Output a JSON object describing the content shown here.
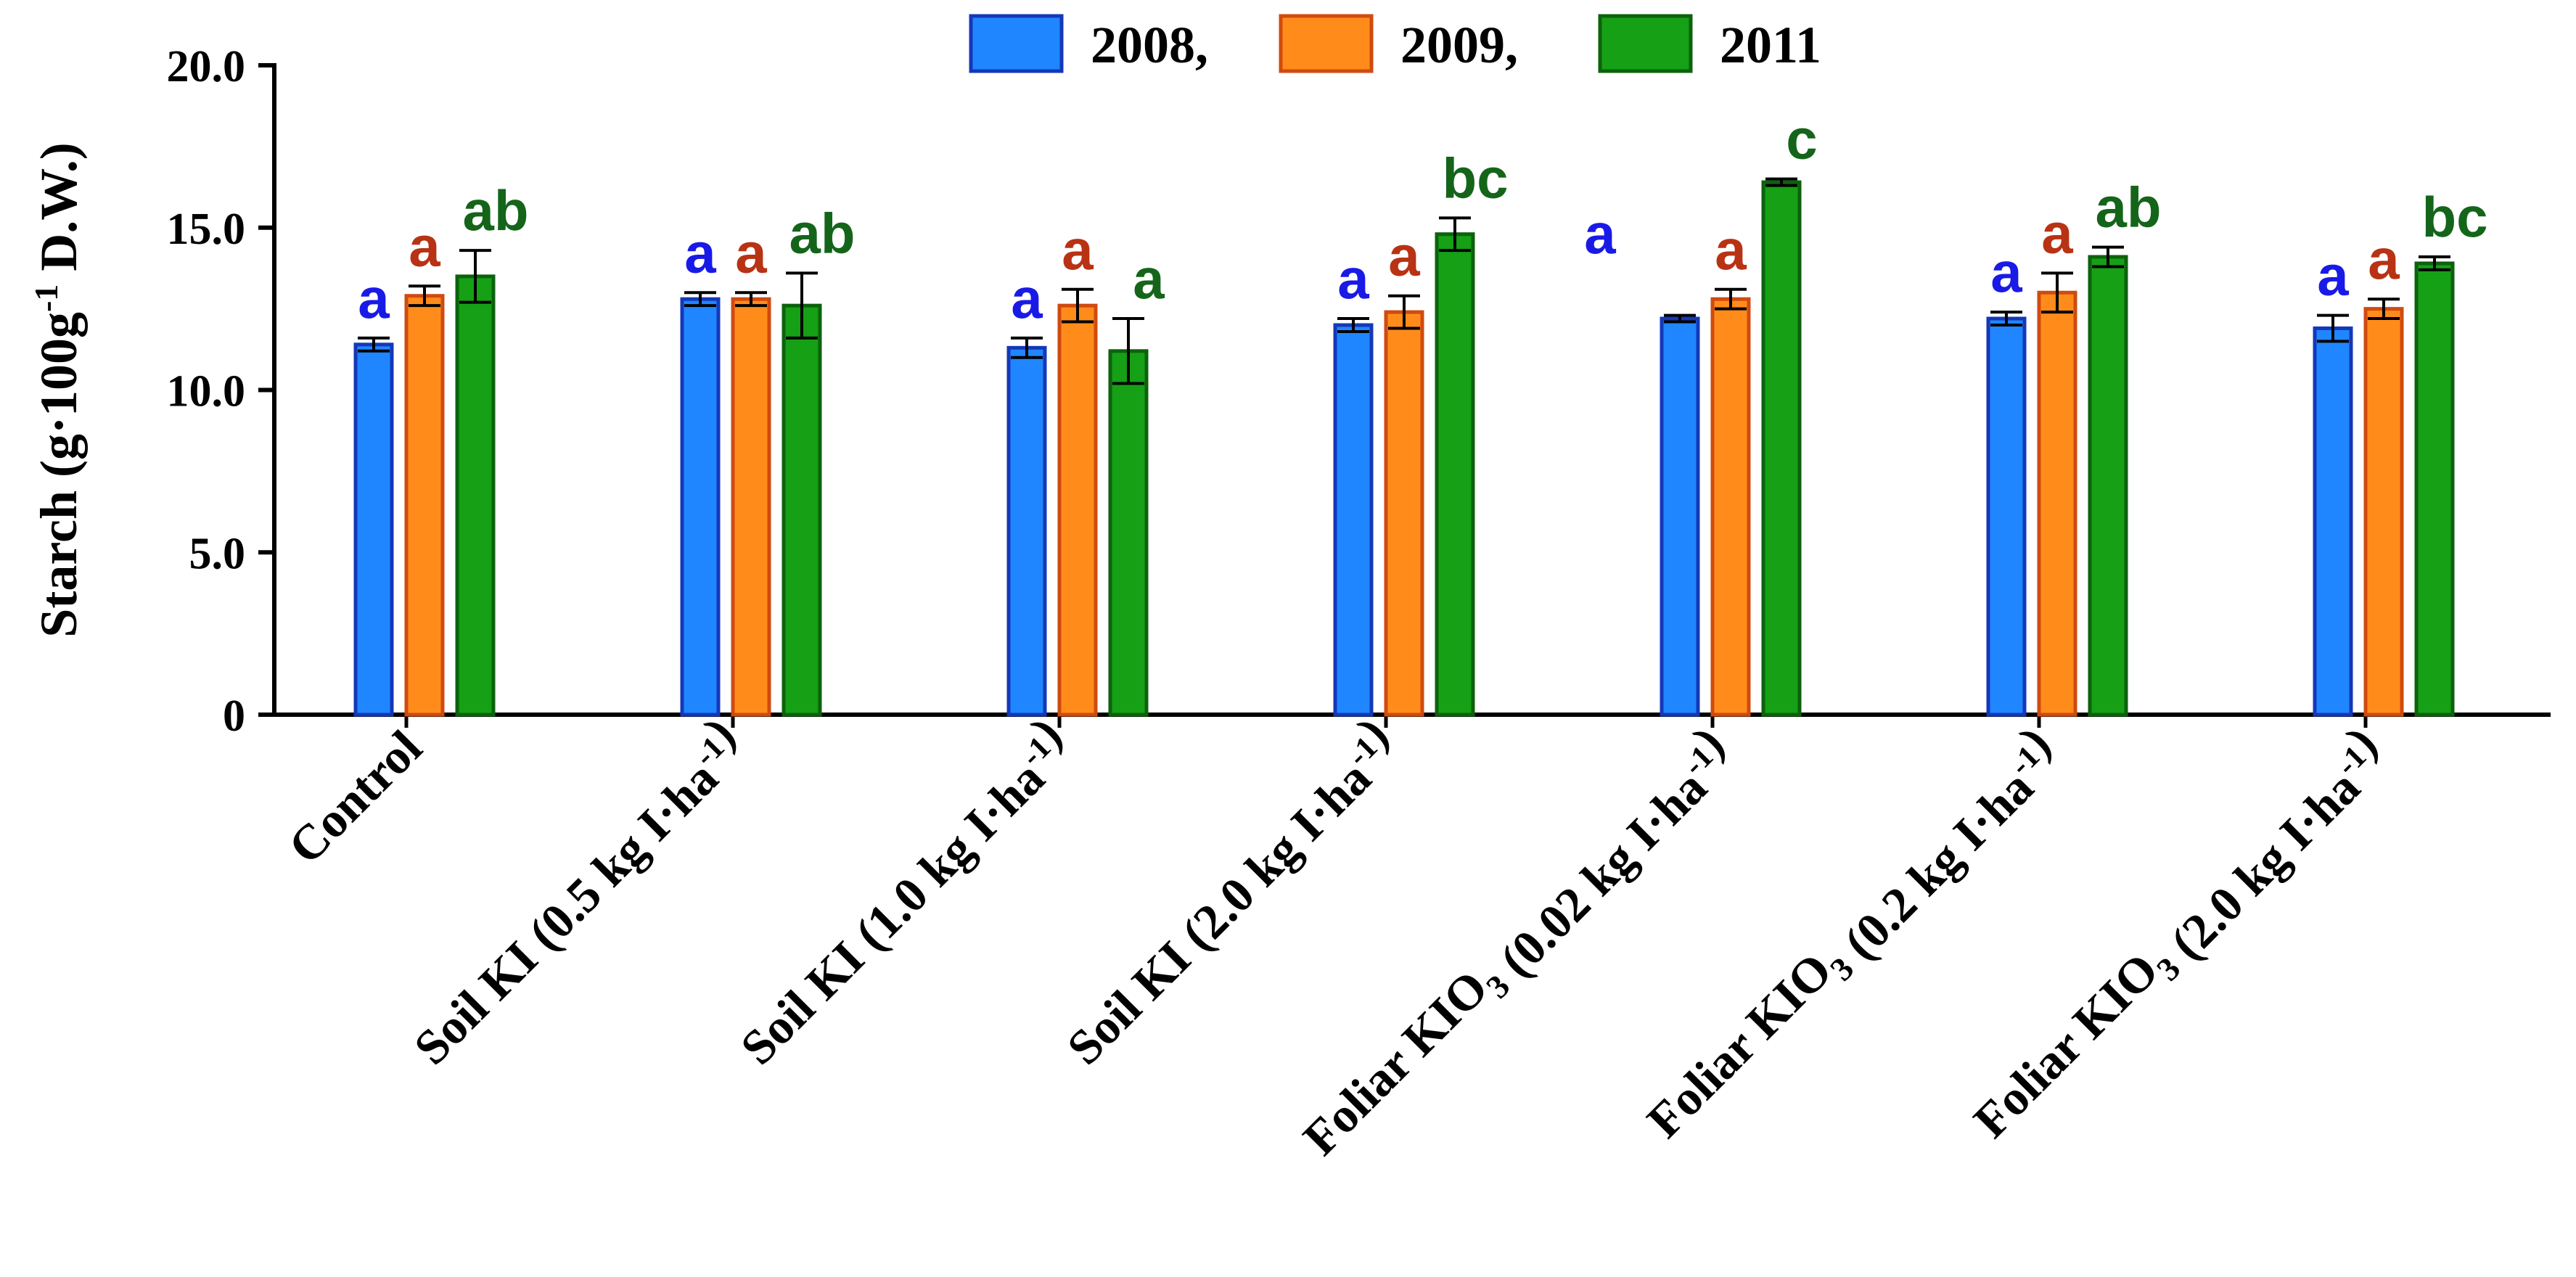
{
  "chart_data": {
    "type": "bar",
    "ylabel_main": "Starch (g·100g",
    "ylabel_sup": "-1",
    "ylabel_tail": " D.W.)",
    "ylim": [
      0,
      20
    ],
    "yticks": [
      {
        "value": 0,
        "label": "0"
      },
      {
        "value": 5,
        "label": "5.0"
      },
      {
        "value": 10,
        "label": "10.0"
      },
      {
        "value": 15,
        "label": "15.0"
      },
      {
        "value": 20,
        "label": "20.0"
      }
    ],
    "categories": [
      {
        "parts": [
          {
            "t": "Control",
            "s": ""
          }
        ]
      },
      {
        "parts": [
          {
            "t": "Soil KI (0.5 kg I·ha",
            "s": ""
          },
          {
            "t": "-1",
            "s": "sup"
          },
          {
            "t": ")",
            "s": ""
          }
        ]
      },
      {
        "parts": [
          {
            "t": "Soil KI (1.0 kg I·ha",
            "s": ""
          },
          {
            "t": "-1",
            "s": "sup"
          },
          {
            "t": ")",
            "s": ""
          }
        ]
      },
      {
        "parts": [
          {
            "t": "Soil KI (2.0 kg I·ha",
            "s": ""
          },
          {
            "t": "-1",
            "s": "sup"
          },
          {
            "t": ")",
            "s": ""
          }
        ]
      },
      {
        "parts": [
          {
            "t": "Foliar KIO",
            "s": ""
          },
          {
            "t": "3",
            "s": "sub"
          },
          {
            "t": " (0.02 kg I·ha",
            "s": ""
          },
          {
            "t": "-1",
            "s": "sup"
          },
          {
            "t": ")",
            "s": ""
          }
        ]
      },
      {
        "parts": [
          {
            "t": "Foliar KIO",
            "s": ""
          },
          {
            "t": "3",
            "s": "sub"
          },
          {
            "t": " (0.2 kg I·ha",
            "s": ""
          },
          {
            "t": "-1",
            "s": "sup"
          },
          {
            "t": ")",
            "s": ""
          }
        ]
      },
      {
        "parts": [
          {
            "t": "Foliar KIO",
            "s": ""
          },
          {
            "t": "3",
            "s": "sub"
          },
          {
            "t": " (2.0 kg I·ha",
            "s": ""
          },
          {
            "t": "-1",
            "s": "sup"
          },
          {
            "t": ")",
            "s": ""
          }
        ]
      }
    ],
    "series": [
      {
        "name": "2008,",
        "color": "#1f86ff",
        "edge": "#1438b8",
        "label_color": "#1a1ae6",
        "values": [
          11.4,
          12.8,
          11.3,
          12.0,
          12.2,
          12.2,
          11.9
        ],
        "errors": [
          0.2,
          0.2,
          0.3,
          0.2,
          0.1,
          0.2,
          0.4
        ],
        "letters": [
          "a",
          "a",
          "a",
          "a",
          "a",
          "a",
          "a"
        ]
      },
      {
        "name": "2009,",
        "color": "#ff8c1a",
        "edge": "#d04a10",
        "label_color": "#b83214",
        "values": [
          12.9,
          12.8,
          12.6,
          12.4,
          12.8,
          13.0,
          12.5
        ],
        "errors": [
          0.3,
          0.2,
          0.5,
          0.5,
          0.3,
          0.6,
          0.3
        ],
        "letters": [
          "a",
          "a",
          "a",
          "a",
          "a",
          "a",
          "a"
        ]
      },
      {
        "name": "2011",
        "color": "#15a015",
        "edge": "#0c620c",
        "label_color": "#14651a",
        "values": [
          13.5,
          12.6,
          11.2,
          14.8,
          16.4,
          14.1,
          13.9
        ],
        "errors": [
          0.8,
          1.0,
          1.0,
          0.5,
          0.1,
          0.3,
          0.2
        ],
        "letters": [
          "ab",
          "ab",
          "a",
          "bc",
          "c",
          "ab",
          "bc"
        ]
      }
    ],
    "legend_position": "top-center"
  }
}
